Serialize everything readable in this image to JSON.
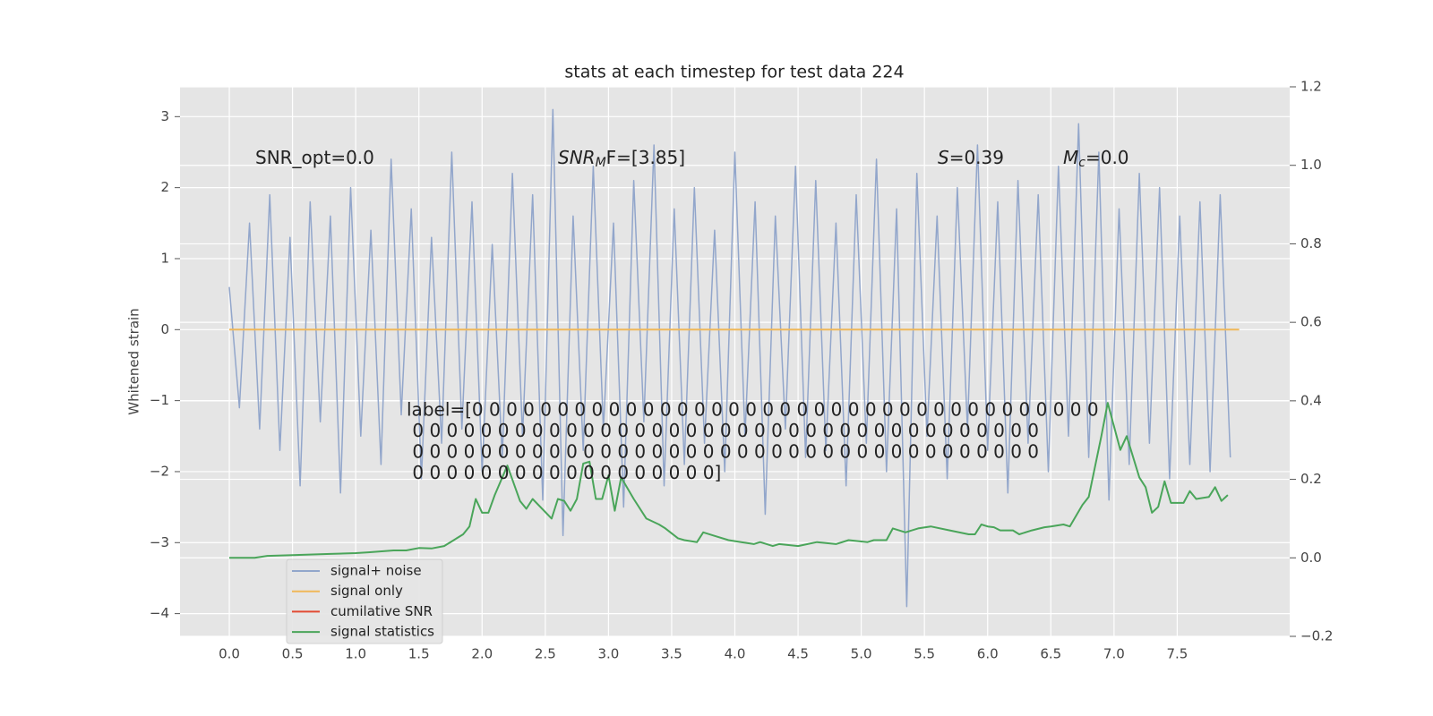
{
  "chart_data": {
    "type": "line",
    "title": "stats at each timestep for test data 224",
    "ylabel": "Whitened strain",
    "xlim": [
      -0.39,
      8.39
    ],
    "ylim": [
      -4.32,
      3.42
    ],
    "y2lim": [
      -0.2,
      1.2
    ],
    "xticks": [
      {
        "value": 0,
        "label": "0.0"
      },
      0.5,
      {
        "value": 1,
        "label": "1.0"
      },
      1.5,
      {
        "value": 2,
        "label": "2.0"
      },
      2.5,
      {
        "value": 3,
        "label": "3.0"
      },
      3.5,
      {
        "value": 4,
        "label": "4.0"
      },
      4.5,
      {
        "value": 5,
        "label": "5.0"
      },
      5.5,
      {
        "value": 6,
        "label": "6.0"
      },
      6.5,
      {
        "value": 7,
        "label": "7.0"
      },
      7.5
    ],
    "yticks": [
      {
        "value": -4,
        "label": "−4"
      },
      {
        "value": -3,
        "label": "−3"
      },
      {
        "value": -2,
        "label": "−2"
      },
      {
        "value": -1,
        "label": "−1"
      },
      0,
      1,
      2,
      3
    ],
    "y2ticks": [
      {
        "value": -0.2,
        "label": "−0.2"
      },
      {
        "value": 0,
        "label": "0.0"
      },
      0.2,
      0.4,
      0.6,
      0.8,
      {
        "value": 1,
        "label": "1.0"
      },
      1.2
    ],
    "grid": true,
    "legend": "lower left",
    "series": [
      {
        "name": "signal+ noise",
        "color": "#92a6cb",
        "x": [
          0,
          0.08,
          0.16,
          0.24,
          0.32,
          0.4,
          0.48,
          0.56,
          0.64,
          0.72,
          0.8,
          0.88,
          0.96,
          1.04,
          1.12,
          1.2,
          1.28,
          1.36,
          1.44,
          1.52,
          1.6,
          1.68,
          1.76,
          1.84,
          1.92,
          2,
          2.08,
          2.16,
          2.24,
          2.32,
          2.4,
          2.48,
          2.56,
          2.64,
          2.72,
          2.8,
          2.88,
          2.96,
          3.04,
          3.12,
          3.2,
          3.28,
          3.36,
          3.44,
          3.52,
          3.6,
          3.68,
          3.76,
          3.84,
          3.92,
          4,
          4.08,
          4.16,
          4.24,
          4.32,
          4.4,
          4.48,
          4.56,
          4.64,
          4.72,
          4.8,
          4.88,
          4.96,
          5.04,
          5.12,
          5.2,
          5.28,
          5.36,
          5.44,
          5.52,
          5.6,
          5.68,
          5.76,
          5.84,
          5.92,
          6,
          6.08,
          6.16,
          6.24,
          6.32,
          6.4,
          6.48,
          6.56,
          6.64,
          6.72,
          6.8,
          6.88,
          6.96,
          7.04,
          7.12,
          7.2,
          7.28,
          7.36,
          7.44,
          7.52,
          7.6,
          7.68,
          7.76,
          7.84,
          7.92
        ],
        "values": [
          0.6,
          -1.1,
          1.5,
          -1.4,
          1.9,
          -1.7,
          1.3,
          -2.2,
          1.8,
          -1.3,
          1.6,
          -2.3,
          2.0,
          -1.5,
          1.4,
          -1.9,
          2.4,
          -1.2,
          1.7,
          -2.1,
          1.3,
          -1.6,
          2.5,
          -1.4,
          1.8,
          -2.0,
          1.2,
          -1.8,
          2.2,
          -1.5,
          1.9,
          -2.4,
          3.1,
          -2.9,
          1.6,
          -1.7,
          2.3,
          -1.4,
          1.5,
          -2.5,
          2.1,
          -1.3,
          2.6,
          -2.2,
          1.7,
          -1.9,
          2.0,
          -1.6,
          1.4,
          -2.0,
          2.5,
          -1.5,
          1.8,
          -2.6,
          1.6,
          -1.4,
          2.3,
          -1.8,
          2.1,
          -1.7,
          1.5,
          -2.2,
          1.9,
          -1.6,
          2.4,
          -2.0,
          1.7,
          -3.9,
          2.2,
          -1.5,
          1.6,
          -2.1,
          2.0,
          -1.4,
          2.6,
          -1.7,
          1.8,
          -2.3,
          2.1,
          -1.6,
          1.9,
          -2.0,
          2.3,
          -1.5,
          2.9,
          -1.8,
          2.5,
          -2.4,
          1.7,
          -1.9,
          2.2,
          -1.6,
          2.0,
          -2.1,
          1.6,
          -1.9,
          1.8,
          -2.0,
          1.9,
          -1.8
        ]
      },
      {
        "name": "signal only",
        "color": "#f0b85a",
        "x": [
          0,
          7.99
        ],
        "values": [
          0,
          0
        ]
      },
      {
        "name": "cumilative SNR",
        "color": "#e24a33",
        "x": [],
        "values": []
      },
      {
        "name": "signal statistics",
        "color": "#4aa55a",
        "axis": "y2",
        "x": [
          0,
          0.2,
          0.3,
          0.5,
          0.8,
          1.0,
          1.1,
          1.3,
          1.4,
          1.5,
          1.6,
          1.7,
          1.8,
          1.85,
          1.9,
          1.95,
          2.0,
          2.05,
          2.1,
          2.2,
          2.3,
          2.35,
          2.4,
          2.55,
          2.6,
          2.65,
          2.7,
          2.75,
          2.8,
          2.85,
          2.9,
          2.95,
          3.0,
          3.05,
          3.1,
          3.2,
          3.3,
          3.4,
          3.45,
          3.55,
          3.6,
          3.7,
          3.75,
          3.85,
          3.95,
          4.05,
          4.15,
          4.2,
          4.3,
          4.35,
          4.5,
          4.65,
          4.8,
          4.9,
          5.05,
          5.1,
          5.2,
          5.25,
          5.35,
          5.45,
          5.55,
          5.7,
          5.85,
          5.9,
          5.95,
          6.0,
          6.05,
          6.1,
          6.2,
          6.25,
          6.35,
          6.45,
          6.5,
          6.6,
          6.65,
          6.75,
          6.8,
          6.9,
          6.95,
          7.05,
          7.1,
          7.2,
          7.25,
          7.3,
          7.35,
          7.4,
          7.45,
          7.55,
          7.6,
          7.65,
          7.75,
          7.8,
          7.85,
          7.9
        ],
        "values": [
          0,
          0,
          0.005,
          0.007,
          0.01,
          0.012,
          0.014,
          0.019,
          0.019,
          0.025,
          0.024,
          0.03,
          0.05,
          0.06,
          0.08,
          0.15,
          0.115,
          0.115,
          0.16,
          0.235,
          0.145,
          0.125,
          0.15,
          0.1,
          0.15,
          0.145,
          0.12,
          0.15,
          0.24,
          0.245,
          0.15,
          0.15,
          0.21,
          0.12,
          0.205,
          0.15,
          0.1,
          0.085,
          0.075,
          0.05,
          0.045,
          0.04,
          0.065,
          0.055,
          0.045,
          0.04,
          0.035,
          0.04,
          0.03,
          0.035,
          0.03,
          0.04,
          0.035,
          0.045,
          0.04,
          0.045,
          0.045,
          0.075,
          0.065,
          0.075,
          0.08,
          0.07,
          0.06,
          0.06,
          0.085,
          0.08,
          0.078,
          0.07,
          0.07,
          0.06,
          0.07,
          0.078,
          0.08,
          0.085,
          0.08,
          0.135,
          0.155,
          0.31,
          0.395,
          0.275,
          0.31,
          0.205,
          0.18,
          0.115,
          0.13,
          0.195,
          0.14,
          0.14,
          0.17,
          0.15,
          0.155,
          0.18,
          0.145,
          0.16
        ]
      }
    ],
    "annotations": [
      {
        "text": "SNR_opt=0.0"
      },
      {
        "base": "SNR",
        "sub": "M",
        "tail": "F=[3.85]"
      },
      {
        "base": "S",
        "tail": "=0.39"
      },
      {
        "base": "M",
        "sub": "c",
        "tail": "=0.0"
      }
    ],
    "label_text": [
      "label=[0 0 0 0 0 0 0 0 0 0 0 0 0 0 0 0 0 0 0 0 0 0 0 0 0 0 0 0 0 0 0 0 0 0 0 0 0",
      " 0 0 0 0 0 0 0 0 0 0 0 0 0 0 0 0 0 0 0 0 0 0 0 0 0 0 0 0 0 0 0 0 0 0 0 0 0",
      " 0 0 0 0 0 0 0 0 0 0 0 0 0 0 0 0 0 0 0 0 0 0 0 0 0 0 0 0 0 0 0 0 0 0 0 0 0",
      " 0 0 0 0 0 0 0 0 0 0 0 0 0 0 0 0 0 0]"
    ]
  }
}
